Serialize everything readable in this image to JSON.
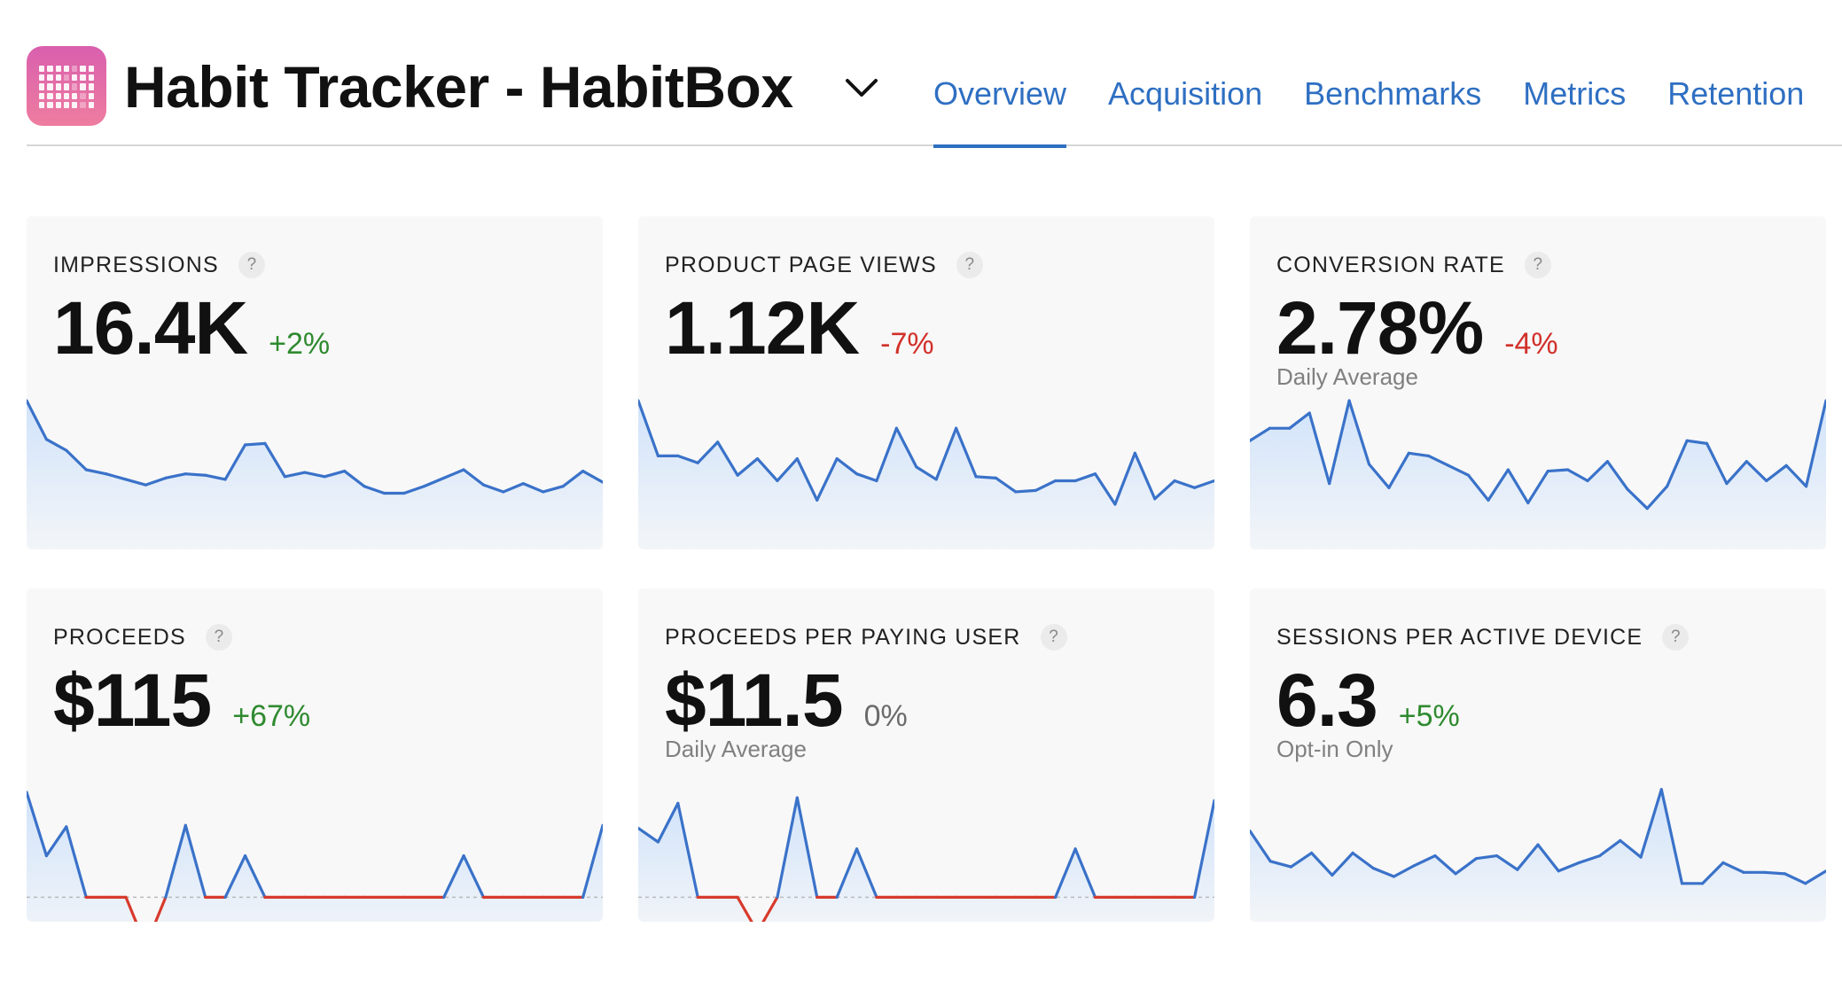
{
  "app": {
    "title": "Habit Tracker - HabitBox",
    "icon": "habit-grid-icon",
    "accent": "#2e6fc2"
  },
  "tabs": [
    {
      "label": "Overview",
      "active": true
    },
    {
      "label": "Acquisition",
      "active": false
    },
    {
      "label": "Benchmarks",
      "active": false
    },
    {
      "label": "Metrics",
      "active": false
    },
    {
      "label": "Retention",
      "active": false
    }
  ],
  "cards": [
    {
      "label": "IMPRESSIONS",
      "help": "?",
      "value": "16.4K",
      "delta": "+2%",
      "trend": "up",
      "subtitle": "",
      "series": [
        1.0,
        0.72,
        0.64,
        0.5,
        0.47,
        0.43,
        0.39,
        0.44,
        0.47,
        0.46,
        0.43,
        0.68,
        0.69,
        0.45,
        0.48,
        0.45,
        0.49,
        0.38,
        0.33,
        0.33,
        0.38,
        0.44,
        0.5,
        0.39,
        0.34,
        0.4,
        0.34,
        0.38,
        0.49,
        0.41
      ],
      "zero": null
    },
    {
      "label": "PRODUCT PAGE VIEWS",
      "help": "?",
      "value": "1.12K",
      "delta": "-7%",
      "trend": "down",
      "subtitle": "",
      "series": [
        1.0,
        0.6,
        0.6,
        0.55,
        0.7,
        0.46,
        0.58,
        0.42,
        0.58,
        0.28,
        0.58,
        0.47,
        0.42,
        0.8,
        0.52,
        0.43,
        0.8,
        0.45,
        0.44,
        0.34,
        0.35,
        0.42,
        0.42,
        0.47,
        0.25,
        0.62,
        0.29,
        0.42,
        0.37,
        0.42
      ],
      "zero": null
    },
    {
      "label": "CONVERSION RATE",
      "help": "?",
      "value": "2.78%",
      "delta": "-4%",
      "trend": "down",
      "subtitle": "Daily Average",
      "series": [
        0.71,
        0.8,
        0.8,
        0.91,
        0.4,
        1.0,
        0.54,
        0.37,
        0.62,
        0.6,
        0.53,
        0.46,
        0.28,
        0.5,
        0.26,
        0.49,
        0.5,
        0.42,
        0.56,
        0.36,
        0.22,
        0.38,
        0.71,
        0.69,
        0.4,
        0.56,
        0.42,
        0.53,
        0.38,
        1.0
      ],
      "zero": null
    },
    {
      "label": "PROCEEDS",
      "help": "?",
      "value": "$115",
      "delta": "+67%",
      "trend": "up",
      "subtitle": "",
      "series": [
        0.86,
        0.4,
        0.61,
        0.1,
        0.1,
        0.1,
        -0.25,
        0.1,
        0.62,
        0.1,
        0.1,
        0.4,
        0.1,
        0.1,
        0.1,
        0.1,
        0.1,
        0.1,
        0.1,
        0.1,
        0.1,
        0.1,
        0.4,
        0.1,
        0.1,
        0.1,
        0.1,
        0.1,
        0.1,
        0.62
      ],
      "zero": 0.1
    },
    {
      "label": "PROCEEDS PER PAYING USER",
      "help": "?",
      "value": "$11.5",
      "delta": "0%",
      "trend": "flat",
      "subtitle": "Daily Average",
      "series": [
        0.6,
        0.5,
        0.78,
        0.1,
        0.1,
        0.1,
        -0.15,
        0.1,
        0.82,
        0.1,
        0.1,
        0.45,
        0.1,
        0.1,
        0.1,
        0.1,
        0.1,
        0.1,
        0.1,
        0.1,
        0.1,
        0.1,
        0.45,
        0.1,
        0.1,
        0.1,
        0.1,
        0.1,
        0.1,
        0.8
      ],
      "zero": 0.1
    },
    {
      "label": "SESSIONS PER ACTIVE DEVICE",
      "help": "?",
      "value": "6.3",
      "delta": "+5%",
      "trend": "up",
      "subtitle": "Opt-in Only",
      "series": [
        0.58,
        0.36,
        0.32,
        0.42,
        0.26,
        0.42,
        0.31,
        0.25,
        0.33,
        0.4,
        0.27,
        0.38,
        0.4,
        0.3,
        0.48,
        0.29,
        0.35,
        0.4,
        0.51,
        0.39,
        0.88,
        0.2,
        0.2,
        0.35,
        0.28,
        0.28,
        0.27,
        0.2,
        0.29
      ],
      "zero": null
    }
  ],
  "colors": {
    "line": "#3a72c9",
    "fill_top": "#cfe2fa",
    "negative_line": "#d83a2c",
    "baseline": "#bbbbbb"
  }
}
